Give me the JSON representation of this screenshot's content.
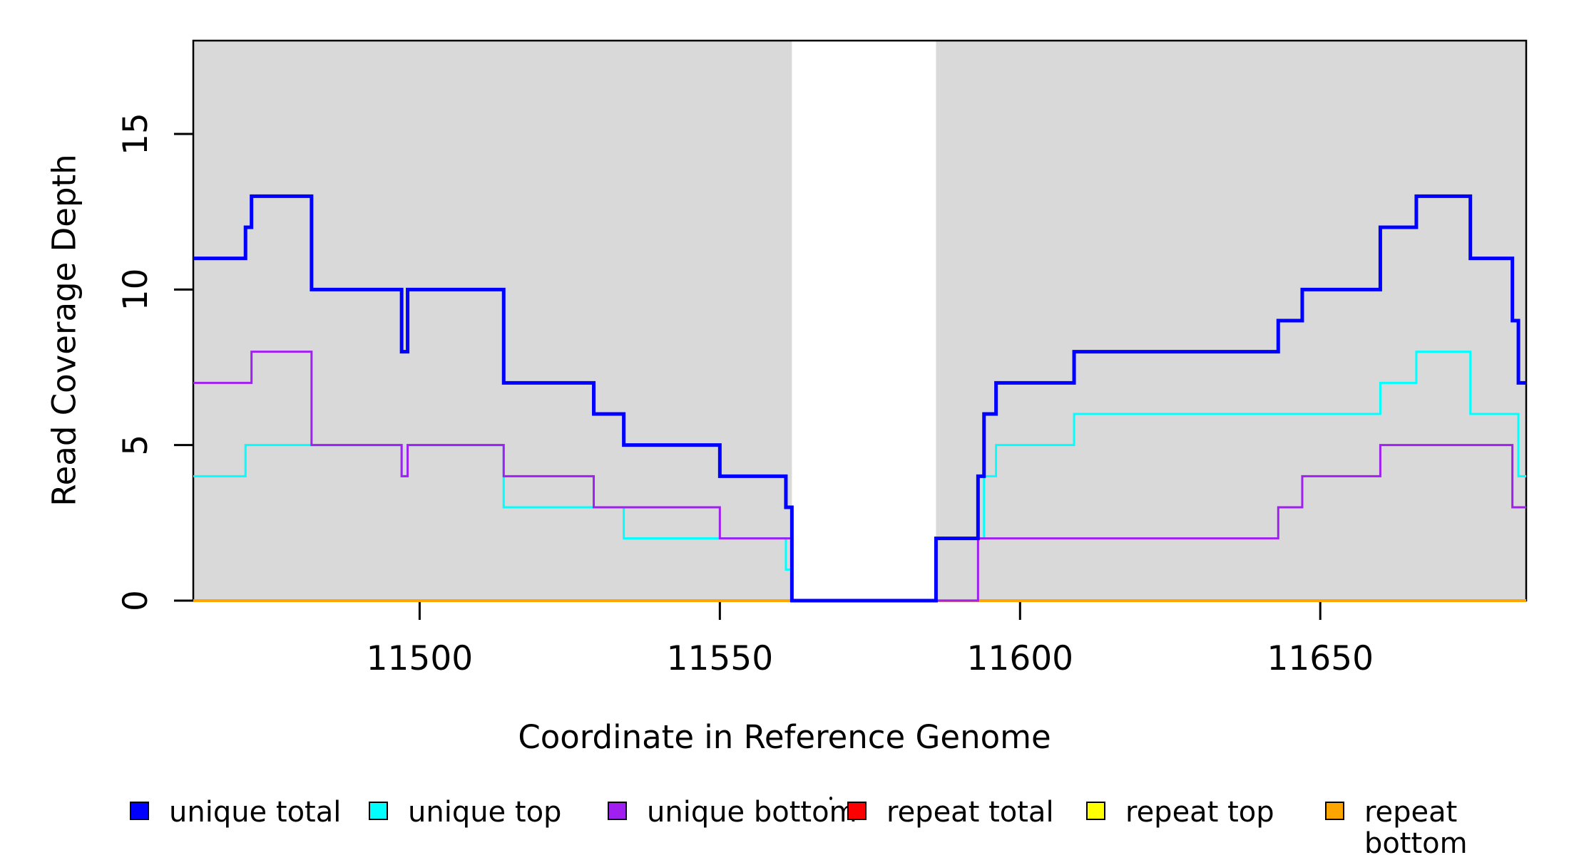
{
  "chart_data": {
    "type": "line",
    "subtype": "step-coverage",
    "title": "",
    "xlabel": "Coordinate in Reference Genome",
    "ylabel": "Read Coverage Depth",
    "xlim": [
      11462.3,
      11684.3
    ],
    "ylim": [
      0,
      18
    ],
    "xticks": [
      11500,
      11550,
      11600,
      11650
    ],
    "yticks": [
      0,
      5,
      10,
      15
    ],
    "grid": false,
    "legend_position": "bottom",
    "plot_bg": "#FFFFFF",
    "shaded_regions": [
      {
        "x0": 11462.3,
        "x1": 11562,
        "color": "#D9D9D9"
      },
      {
        "x0": 11586,
        "x1": 11684.3,
        "color": "#D9D9D9"
      }
    ],
    "gap_region": {
      "x0": 11562,
      "x1": 11586,
      "note": "white unshaded zero-coverage gap"
    },
    "series_end_x": 11684.3,
    "series": [
      {
        "name": "repeat total",
        "color": "#FF0000",
        "width": 3,
        "steps": [
          [
            11462.3,
            0
          ]
        ]
      },
      {
        "name": "repeat top",
        "color": "#FFFF00",
        "width": 3,
        "steps": [
          [
            11462.3,
            0
          ]
        ]
      },
      {
        "name": "repeat bottom",
        "color": "#FFA500",
        "width": 4,
        "steps": [
          [
            11462.3,
            0
          ]
        ]
      },
      {
        "name": "unique top",
        "color": "#00FFFF",
        "width": 3,
        "steps": [
          [
            11462.3,
            4
          ],
          [
            11471,
            5
          ],
          [
            11497,
            4
          ],
          [
            11498,
            5
          ],
          [
            11514,
            3
          ],
          [
            11534,
            2
          ],
          [
            11561,
            1
          ],
          [
            11562,
            0
          ],
          [
            11586,
            2
          ],
          [
            11594,
            4
          ],
          [
            11596,
            5
          ],
          [
            11609,
            6
          ],
          [
            11660,
            7
          ],
          [
            11666,
            8
          ],
          [
            11675,
            6
          ],
          [
            11683,
            4
          ]
        ]
      },
      {
        "name": "unique bottom",
        "color": "#A020F0",
        "width": 3,
        "steps": [
          [
            11462.3,
            7
          ],
          [
            11472,
            8
          ],
          [
            11482,
            5
          ],
          [
            11497,
            4
          ],
          [
            11498,
            5
          ],
          [
            11514,
            4
          ],
          [
            11529,
            3
          ],
          [
            11550,
            2
          ],
          [
            11562,
            0
          ],
          [
            11593,
            2
          ],
          [
            11643,
            3
          ],
          [
            11647,
            4
          ],
          [
            11660,
            5
          ],
          [
            11682,
            3
          ]
        ]
      },
      {
        "name": "unique total",
        "color": "#0000FF",
        "width": 5,
        "steps": [
          [
            11462.3,
            11
          ],
          [
            11471,
            12
          ],
          [
            11472,
            13
          ],
          [
            11482,
            10
          ],
          [
            11497,
            8
          ],
          [
            11498,
            10
          ],
          [
            11514,
            7
          ],
          [
            11529,
            6
          ],
          [
            11534,
            5
          ],
          [
            11550,
            4
          ],
          [
            11561,
            3
          ],
          [
            11562,
            0
          ],
          [
            11586,
            2
          ],
          [
            11593,
            4
          ],
          [
            11594,
            6
          ],
          [
            11596,
            7
          ],
          [
            11609,
            8
          ],
          [
            11643,
            9
          ],
          [
            11647,
            10
          ],
          [
            11660,
            12
          ],
          [
            11666,
            13
          ],
          [
            11675,
            11
          ],
          [
            11682,
            9
          ],
          [
            11683,
            7
          ]
        ]
      }
    ]
  },
  "titles": {
    "x": "Coordinate in Reference Genome",
    "y": "Read Coverage Depth"
  },
  "legend": {
    "items": [
      {
        "label": "unique total",
        "color": "#0000FF"
      },
      {
        "label": "unique top",
        "color": "#00FFFF"
      },
      {
        "label": "unique bottom",
        "color": "#A020F0"
      },
      {
        "label": "repeat total",
        "color": "#FF0000"
      },
      {
        "label": "repeat top",
        "color": "#FFFF00"
      },
      {
        "label": "repeat bottom",
        "color": "#FFA500"
      }
    ]
  },
  "colors": {
    "axis": "#000000",
    "shade": "#D9D9D9",
    "background": "#FFFFFF"
  }
}
